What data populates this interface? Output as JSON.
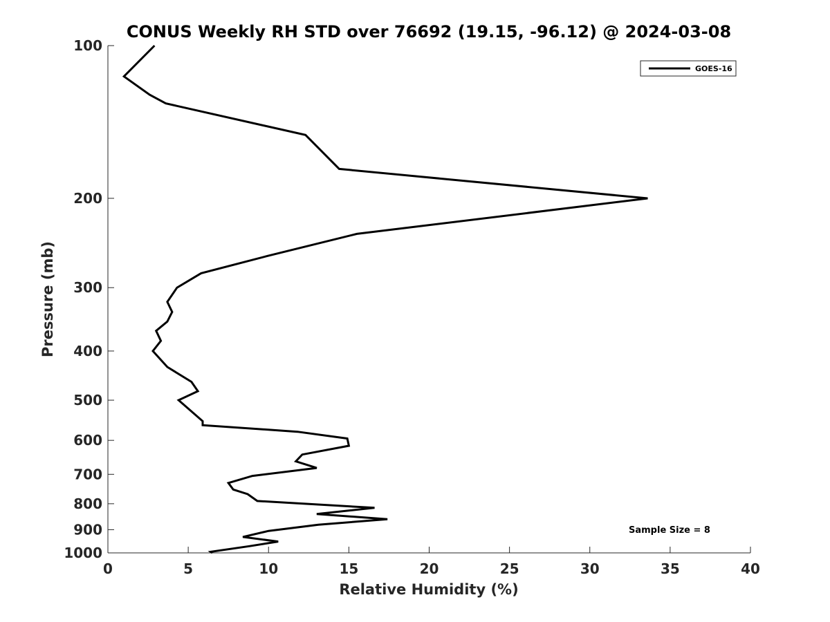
{
  "chart_data": {
    "type": "line",
    "title": "CONUS Weekly RH STD over 76692 (19.15, -96.12) @ 2024-03-08",
    "xlabel": "Relative Humidity (%)",
    "ylabel": "Pressure (mb)",
    "xlim": [
      0,
      40
    ],
    "ylim": [
      100,
      1000
    ],
    "y_scale": "log",
    "y_reversed": true,
    "x_ticks": [
      "0",
      "5",
      "10",
      "15",
      "20",
      "25",
      "30",
      "35",
      "40"
    ],
    "y_ticks": [
      "100",
      "200",
      "300",
      "400",
      "500",
      "600",
      "700",
      "800",
      "900",
      "1000"
    ],
    "grid": false,
    "legend_position": "top-right",
    "annotation": "Sample Size = 8",
    "series": [
      {
        "name": "GOES-16",
        "color": "#000000",
        "x": [
          2.9,
          1.0,
          2.6,
          3.6,
          12.3,
          14.4,
          33.6,
          15.5,
          9.9,
          5.8,
          4.3,
          3.7,
          4.0,
          3.7,
          3.0,
          3.3,
          2.8,
          3.7,
          5.2,
          5.6,
          4.4,
          5.9,
          5.9,
          11.8,
          14.9,
          15.0,
          12.1,
          11.7,
          13.0,
          9.0,
          7.5,
          7.8,
          8.7,
          9.3,
          16.6,
          13.0,
          17.4,
          13.1,
          10.0,
          8.4,
          10.6,
          8.8,
          6.4,
          6.5
        ],
        "y": [
          100,
          115,
          125,
          130,
          150,
          175,
          200,
          235,
          260,
          281,
          300,
          320,
          335,
          350,
          365,
          382,
          400,
          430,
          460,
          480,
          500,
          550,
          560,
          577,
          595,
          615,
          640,
          660,
          680,
          705,
          728,
          750,
          766,
          790,
          815,
          838,
          858,
          880,
          905,
          930,
          950,
          970,
          995,
          1000
        ]
      }
    ]
  }
}
